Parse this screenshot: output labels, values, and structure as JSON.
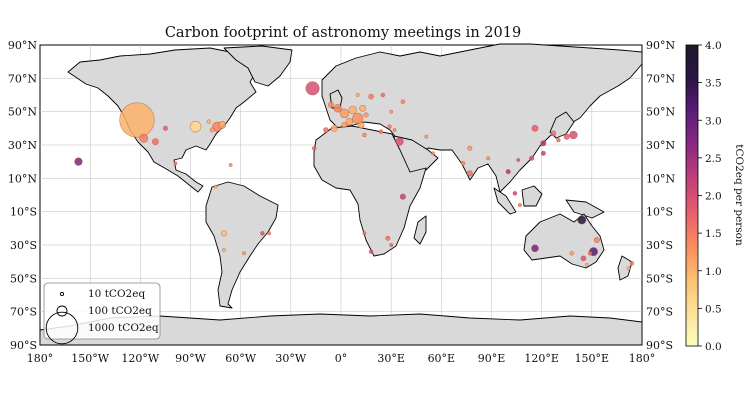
{
  "title": "Carbon footprint of astronomy meetings in 2019",
  "colorbar": {
    "label": "tCO2eq per person",
    "ticks": [
      "0.0",
      "0.5",
      "1.0",
      "1.5",
      "2.0",
      "2.5",
      "3.0",
      "3.5",
      "4.0"
    ],
    "range": [
      0,
      4
    ],
    "colormap": [
      "#fcfdbf",
      "#fde39a",
      "#fcbf6f",
      "#f98c5d",
      "#e85e6c",
      "#c13f7a",
      "#8c2981",
      "#5b1d7a",
      "#2a1444",
      "#1d1c2c"
    ]
  },
  "axes": {
    "x_ticks": [
      "180°",
      "150°W",
      "120°W",
      "90°W",
      "60°W",
      "30°W",
      "0°",
      "30°E",
      "60°E",
      "90°E",
      "120°E",
      "150°E",
      "180°"
    ],
    "y_ticks": [
      "90°N",
      "70°N",
      "50°N",
      "30°N",
      "10°N",
      "10°S",
      "30°S",
      "50°S",
      "70°S",
      "90°S"
    ]
  },
  "legend": {
    "placement": "lower-left",
    "items": [
      {
        "label": "10 tCO2eq",
        "size_t": 10
      },
      {
        "label": "100 tCO2eq",
        "size_t": 100
      },
      {
        "label": "1000 tCO2eq",
        "size_t": 1000
      }
    ]
  },
  "colors": {
    "land": "#d9d9d9",
    "coast": "#000000",
    "grid": "#bdbdbd"
  },
  "meetings": [
    {
      "lon": -122,
      "lat": 45,
      "t": 1200,
      "c": 1.0
    },
    {
      "lon": -17,
      "lat": 64,
      "t": 180,
      "c": 2.0
    },
    {
      "lon": -87,
      "lat": 41,
      "t": 120,
      "c": 0.6
    },
    {
      "lon": -74,
      "lat": 41,
      "t": 90,
      "c": 1.4
    },
    {
      "lon": -118,
      "lat": 34,
      "t": 70,
      "c": 1.5
    },
    {
      "lon": -111,
      "lat": 32,
      "t": 40,
      "c": 1.6
    },
    {
      "lon": -105,
      "lat": 40,
      "t": 20,
      "c": 1.8
    },
    {
      "lon": -157,
      "lat": 20,
      "t": 60,
      "c": 2.8
    },
    {
      "lon": -71,
      "lat": 42,
      "t": 50,
      "c": 1.1
    },
    {
      "lon": -77,
      "lat": 39,
      "t": 20,
      "c": 1.2
    },
    {
      "lon": -79,
      "lat": 44,
      "t": 15,
      "c": 1.0
    },
    {
      "lon": -66,
      "lat": 18,
      "t": 10,
      "c": 1.3
    },
    {
      "lon": -99,
      "lat": 19,
      "t": 10,
      "c": 1.5
    },
    {
      "lon": -70,
      "lat": -23,
      "t": 30,
      "c": 0.8
    },
    {
      "lon": -70,
      "lat": -33,
      "t": 10,
      "c": 0.9
    },
    {
      "lon": -58,
      "lat": -35,
      "t": 10,
      "c": 1.2
    },
    {
      "lon": -47,
      "lat": -23,
      "t": 15,
      "c": 2.0
    },
    {
      "lon": -43,
      "lat": -23,
      "t": 10,
      "c": 1.5
    },
    {
      "lon": -75,
      "lat": 5,
      "t": 5,
      "c": 1.0
    },
    {
      "lon": -9,
      "lat": 39,
      "t": 25,
      "c": 1.6
    },
    {
      "lon": -4,
      "lat": 40,
      "t": 40,
      "c": 1.0
    },
    {
      "lon": -6,
      "lat": 54,
      "t": 30,
      "c": 1.3
    },
    {
      "lon": -2,
      "lat": 52,
      "t": 60,
      "c": 1.4
    },
    {
      "lon": 2,
      "lat": 49,
      "t": 80,
      "c": 1.2
    },
    {
      "lon": 7,
      "lat": 51,
      "t": 60,
      "c": 1.0
    },
    {
      "lon": 10,
      "lat": 46,
      "t": 110,
      "c": 1.3
    },
    {
      "lon": 13,
      "lat": 52,
      "t": 40,
      "c": 1.0
    },
    {
      "lon": 5,
      "lat": 44,
      "t": 50,
      "c": 1.1
    },
    {
      "lon": 12,
      "lat": 42,
      "t": 40,
      "c": 1.1
    },
    {
      "lon": 15,
      "lat": 48,
      "t": 20,
      "c": 1.2
    },
    {
      "lon": 18,
      "lat": 59,
      "t": 25,
      "c": 1.5
    },
    {
      "lon": 25,
      "lat": 60,
      "t": 15,
      "c": 1.6
    },
    {
      "lon": 10,
      "lat": 60,
      "t": 10,
      "c": 1.0
    },
    {
      "lon": 2,
      "lat": 42,
      "t": 30,
      "c": 1.2
    },
    {
      "lon": -16,
      "lat": 28,
      "t": 15,
      "c": 1.7
    },
    {
      "lon": 14,
      "lat": 36,
      "t": 15,
      "c": 1.4
    },
    {
      "lon": 24,
      "lat": 38,
      "t": 15,
      "c": 1.5
    },
    {
      "lon": 29,
      "lat": 41,
      "t": 15,
      "c": 1.5
    },
    {
      "lon": 32,
      "lat": 39,
      "t": 10,
      "c": 1.3
    },
    {
      "lon": 35,
      "lat": 32,
      "t": 60,
      "c": 2.0
    },
    {
      "lon": 30,
      "lat": 50,
      "t": 10,
      "c": 1.2
    },
    {
      "lon": 37,
      "lat": 56,
      "t": 15,
      "c": 1.4
    },
    {
      "lon": 37,
      "lat": -1,
      "t": 30,
      "c": 2.2
    },
    {
      "lon": 28,
      "lat": -26,
      "t": 20,
      "c": 1.6
    },
    {
      "lon": 18,
      "lat": -34,
      "t": 15,
      "c": 2.0
    },
    {
      "lon": 30,
      "lat": -30,
      "t": 10,
      "c": 1.8
    },
    {
      "lon": 14,
      "lat": -23,
      "t": 10,
      "c": 1.5
    },
    {
      "lon": 77,
      "lat": 13,
      "t": 30,
      "c": 1.6
    },
    {
      "lon": 73,
      "lat": 19,
      "t": 15,
      "c": 1.4
    },
    {
      "lon": 77,
      "lat": 28,
      "t": 20,
      "c": 1.2
    },
    {
      "lon": 88,
      "lat": 22,
      "t": 10,
      "c": 1.3
    },
    {
      "lon": 51,
      "lat": 35,
      "t": 10,
      "c": 1.2
    },
    {
      "lon": 55,
      "lat": 25,
      "t": 10,
      "c": 1.3
    },
    {
      "lon": 116,
      "lat": 40,
      "t": 40,
      "c": 1.8
    },
    {
      "lon": 121,
      "lat": 31,
      "t": 30,
      "c": 2.4
    },
    {
      "lon": 114,
      "lat": 22,
      "t": 20,
      "c": 2.0
    },
    {
      "lon": 121,
      "lat": 25,
      "t": 20,
      "c": 2.2
    },
    {
      "lon": 127,
      "lat": 37,
      "t": 25,
      "c": 1.6
    },
    {
      "lon": 139,
      "lat": 36,
      "t": 60,
      "c": 2.0
    },
    {
      "lon": 135,
      "lat": 35,
      "t": 30,
      "c": 1.8
    },
    {
      "lon": 130,
      "lat": 33,
      "t": 15,
      "c": 1.6
    },
    {
      "lon": 104,
      "lat": 1,
      "t": 15,
      "c": 2.2
    },
    {
      "lon": 100,
      "lat": 14,
      "t": 20,
      "c": 2.4
    },
    {
      "lon": 106,
      "lat": 21,
      "t": 10,
      "c": 2.0
    },
    {
      "lon": 107,
      "lat": -6,
      "t": 10,
      "c": 1.6
    },
    {
      "lon": 144,
      "lat": -15,
      "t": 70,
      "c": 3.8
    },
    {
      "lon": 116,
      "lat": -32,
      "t": 50,
      "c": 2.9
    },
    {
      "lon": 151,
      "lat": -34,
      "t": 70,
      "c": 3.2
    },
    {
      "lon": 153,
      "lat": -27,
      "t": 30,
      "c": 1.4
    },
    {
      "lon": 145,
      "lat": -38,
      "t": 25,
      "c": 2.0
    },
    {
      "lon": 149,
      "lat": -35,
      "t": 15,
      "c": 1.6
    },
    {
      "lon": 138,
      "lat": -35,
      "t": 15,
      "c": 1.2
    },
    {
      "lon": 147,
      "lat": -42,
      "t": 10,
      "c": 1.0
    },
    {
      "lon": 174,
      "lat": -41,
      "t": 15,
      "c": 1.4
    },
    {
      "lon": 172,
      "lat": -44,
      "t": 10,
      "c": 1.0
    }
  ]
}
